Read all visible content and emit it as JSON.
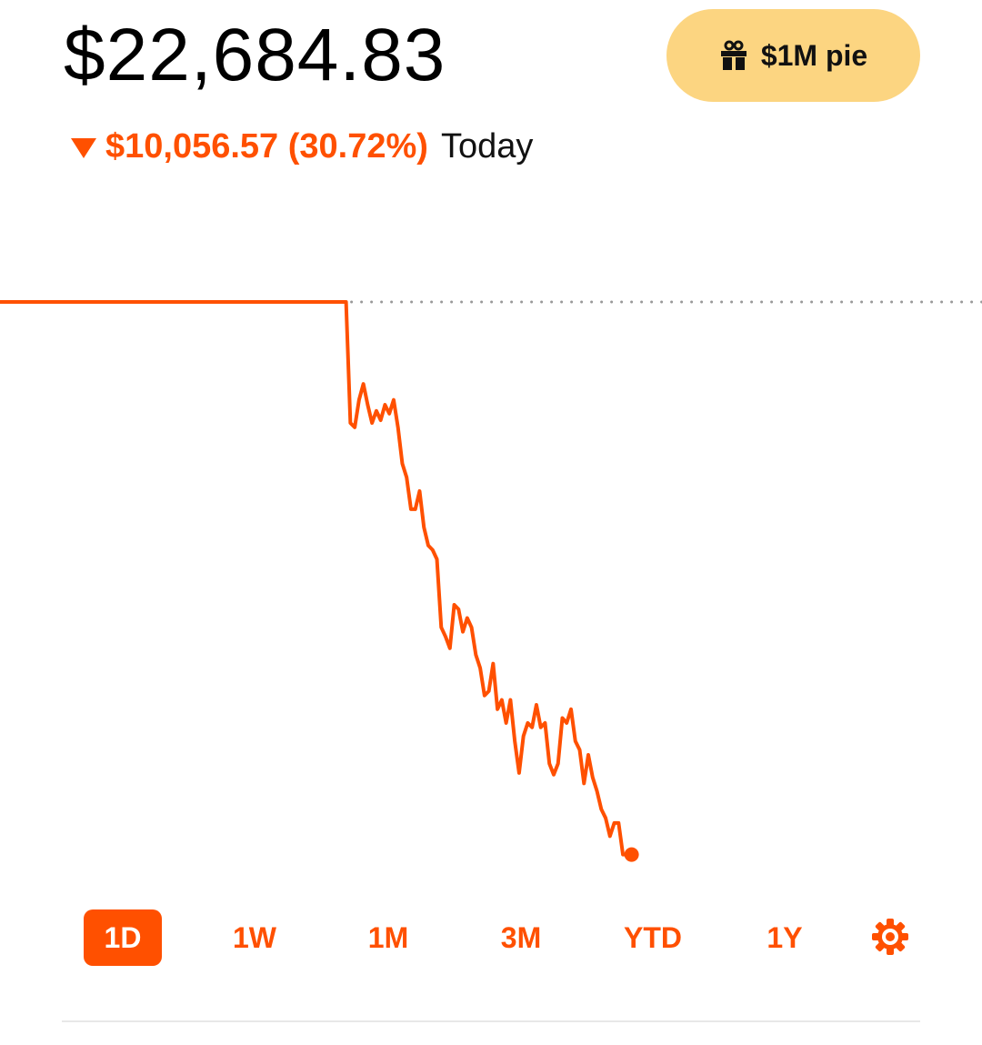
{
  "header": {
    "value": "$22,684.83",
    "change": "$10,056.57 (30.72%)",
    "period": "Today",
    "button": "$1M pie"
  },
  "chart_data": {
    "type": "line",
    "color": "#ff5000",
    "ylim": [
      22000,
      34000
    ],
    "reference_line": 32741.4,
    "values": [
      32741.4,
      32741.4,
      32741.4,
      32741.4,
      32741.4,
      32741.4,
      32741.4,
      32741.4,
      32741.4,
      32741.4,
      32741.4,
      32741.4,
      32741.4,
      32741.4,
      32741.4,
      32741.4,
      32741.4,
      32741.4,
      32741.4,
      32741.4,
      32741.4,
      32741.4,
      32741.4,
      32741.4,
      32741.4,
      32741.4,
      32741.4,
      32741.4,
      32741.4,
      32741.4,
      32741.4,
      32741.4,
      32741.4,
      32741.4,
      32741.4,
      32741.4,
      32741.4,
      32741.4,
      32741.4,
      32741.4,
      32741.4,
      32741.4,
      32741.4,
      32741.4,
      32741.4,
      32741.4,
      32741.4,
      32741.4,
      32741.4,
      32741.4,
      32741.4,
      32741.4,
      32741.4,
      32741.4,
      32741.4,
      32741.4,
      32741.4,
      32741.4,
      32741.4,
      32741.4,
      32741.4,
      32741.4,
      32741.4,
      32741.4,
      32741.4,
      32741.4,
      32741.4,
      32741.4,
      32741.4,
      32741.4,
      32741.4,
      32741.4,
      32741.4,
      32741.4,
      32741.4,
      32741.4,
      32741.4,
      32741.4,
      32741.4,
      32741.4,
      32741.4,
      30540,
      30460,
      30960,
      31250,
      30870,
      30540,
      30760,
      30590,
      30870,
      30710,
      30960,
      30460,
      29800,
      29550,
      28970,
      28970,
      29300,
      28640,
      28310,
      28230,
      28060,
      26820,
      26650,
      26440,
      27230,
      27150,
      26740,
      26990,
      26820,
      26320,
      26080,
      25580,
      25660,
      26160,
      25330,
      25500,
      25080,
      25500,
      24750,
      24170,
      24840,
      25080,
      25000,
      25410,
      25000,
      25080,
      24340,
      24140,
      24340,
      25170,
      25080,
      25330,
      24750,
      24590,
      23980,
      24500,
      24090,
      23840,
      23510,
      23350,
      23020,
      23260,
      23260,
      22684.83,
      22684.83,
      22684.83
    ]
  },
  "tabs": [
    "1D",
    "1W",
    "1M",
    "3M",
    "YTD",
    "1Y"
  ]
}
